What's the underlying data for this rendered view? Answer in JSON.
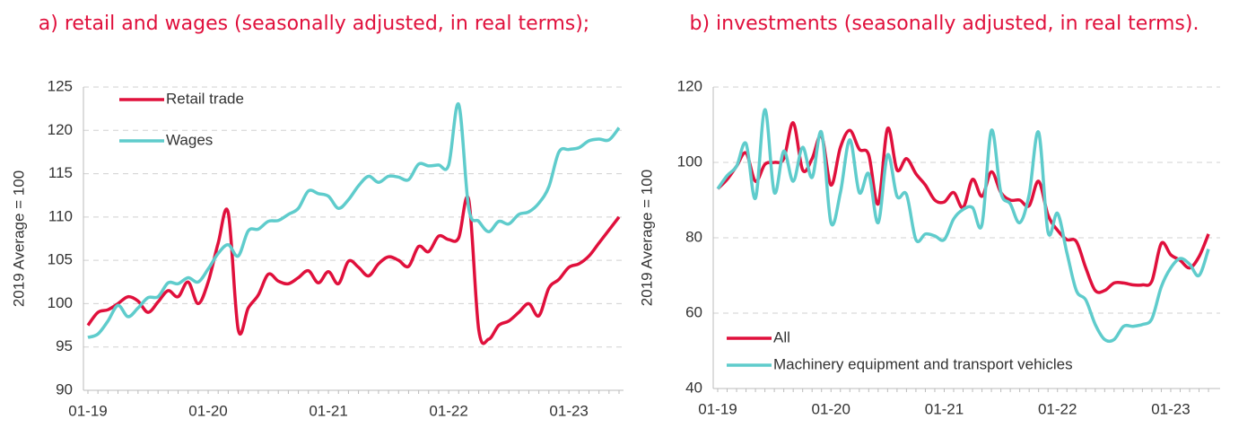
{
  "chart_data": [
    {
      "type": "line",
      "title": "a) retail and wages (seasonally adjusted, in real terms);",
      "ylabel": "2019 Average = 100",
      "categories": [
        "01-19",
        null,
        null,
        null,
        null,
        null,
        null,
        null,
        null,
        null,
        null,
        null,
        "01-20",
        null,
        null,
        null,
        null,
        null,
        null,
        null,
        null,
        null,
        null,
        null,
        "01-21",
        null,
        null,
        null,
        null,
        null,
        null,
        null,
        null,
        null,
        null,
        null,
        "01-22",
        null,
        null,
        null,
        null,
        null,
        null,
        null,
        null,
        null,
        null,
        null,
        "01-23",
        null,
        null,
        null,
        null,
        null
      ],
      "series": [
        {
          "name": "Retail trade",
          "color": "#e0103c",
          "values": [
            97.5,
            99,
            99.3,
            100,
            100.8,
            100.3,
            99,
            100.2,
            101.5,
            100.8,
            102.5,
            100,
            102.5,
            107,
            110.5,
            97,
            99.5,
            101,
            103.4,
            102.6,
            102.3,
            103,
            103.8,
            102.4,
            103.7,
            102.3,
            104.9,
            104.2,
            103.2,
            104.6,
            105.4,
            105,
            104.3,
            106.6,
            106,
            107.8,
            107.4,
            107.6,
            112,
            97,
            95.9,
            97.5,
            98,
            99,
            100,
            98.6,
            101.8,
            102.8,
            104.2,
            104.6,
            105.5,
            107,
            108.5,
            110
          ]
        },
        {
          "name": "Wages",
          "color": "#5fcccc",
          "values": [
            96.1,
            96.5,
            98,
            99.8,
            98.5,
            99.5,
            100.7,
            100.8,
            102.4,
            102.3,
            103,
            102.5,
            104,
            105.8,
            106.8,
            105.5,
            108.4,
            108.6,
            109.5,
            109.6,
            110.3,
            111,
            113,
            112.7,
            112.4,
            111,
            112,
            113.6,
            114.7,
            114,
            114.7,
            114.6,
            114.3,
            116.1,
            115.9,
            116,
            116,
            123,
            111,
            109.5,
            108.3,
            109.5,
            109.2,
            110.3,
            110.6,
            111.6,
            113.5,
            117.5,
            117.8,
            118,
            118.8,
            119,
            118.9,
            120.3
          ]
        }
      ],
      "ylim": [
        90,
        125
      ],
      "yticks": [
        90,
        95,
        100,
        105,
        110,
        115,
        120,
        125
      ],
      "grid": true,
      "legend": "top-left"
    },
    {
      "type": "line",
      "title": "b) investments (seasonally adjusted, in real terms).",
      "ylabel": "2019 Average = 100",
      "categories": [
        "01-19",
        null,
        null,
        null,
        null,
        null,
        null,
        null,
        null,
        null,
        null,
        null,
        "01-20",
        null,
        null,
        null,
        null,
        null,
        null,
        null,
        null,
        null,
        null,
        null,
        "01-21",
        null,
        null,
        null,
        null,
        null,
        null,
        null,
        null,
        null,
        null,
        null,
        "01-22",
        null,
        null,
        null,
        null,
        null,
        null,
        null,
        null,
        null,
        null,
        null,
        "01-23",
        null,
        null,
        null,
        null
      ],
      "series": [
        {
          "name": "All",
          "color": "#e0103c",
          "values": [
            93,
            95.5,
            99,
            102.5,
            95,
            99.5,
            100,
            101,
            110.5,
            98,
            101,
            107,
            94,
            104,
            108.5,
            103.5,
            102,
            89,
            109,
            98,
            101,
            97,
            94,
            90,
            89.5,
            92,
            88,
            95.5,
            91,
            97.5,
            92,
            90,
            90,
            88.5,
            95,
            86,
            82,
            79.5,
            79,
            72,
            66,
            66,
            68,
            68,
            67.5,
            67.5,
            68.5,
            78.5,
            75.5,
            74,
            72,
            75,
            81
          ]
        },
        {
          "name": "Machinery equipment and transport vehicles",
          "color": "#5fcccc",
          "values": [
            93,
            96.5,
            99,
            105,
            90.5,
            114,
            92,
            103,
            95,
            104,
            96,
            108,
            84,
            92,
            106,
            92,
            97,
            84,
            102,
            91,
            91.5,
            79.5,
            81,
            80.5,
            79.5,
            85,
            87.5,
            88,
            83.5,
            108.5,
            92,
            89,
            84,
            91.5,
            108,
            81.5,
            86.5,
            76,
            66,
            63.5,
            57,
            53,
            53,
            56.5,
            56.5,
            57,
            58.5,
            67,
            72,
            74.5,
            73,
            70,
            77
          ]
        }
      ],
      "ylim": [
        40,
        120
      ],
      "yticks": [
        40,
        60,
        80,
        100,
        120
      ],
      "grid": true,
      "legend": "bottom-left"
    }
  ]
}
